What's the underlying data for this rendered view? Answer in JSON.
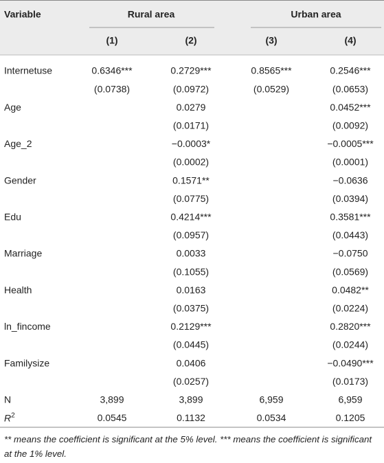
{
  "table": {
    "header": {
      "variable": "Variable",
      "groups": [
        "Rural area",
        "Urban area"
      ],
      "columns": [
        "(1)",
        "(2)",
        "(3)",
        "(4)"
      ]
    },
    "rows": [
      [
        "Internetuse",
        "0.6346***",
        "0.2729***",
        "0.8565***",
        "0.2546***"
      ],
      [
        null,
        "(0.0738)",
        "(0.0972)",
        "(0.0529)",
        "(0.0653)"
      ],
      [
        "Age",
        null,
        "0.0279",
        null,
        "0.0452***"
      ],
      [
        null,
        null,
        "(0.0171)",
        null,
        "(0.0092)"
      ],
      [
        "Age_2",
        null,
        "−0.0003*",
        null,
        "−0.0005***"
      ],
      [
        null,
        null,
        "(0.0002)",
        null,
        "(0.0001)"
      ],
      [
        "Gender",
        null,
        "0.1571**",
        null,
        "−0.0636"
      ],
      [
        null,
        null,
        "(0.0775)",
        null,
        "(0.0394)"
      ],
      [
        "Edu",
        null,
        "0.4214***",
        null,
        "0.3581***"
      ],
      [
        null,
        null,
        "(0.0957)",
        null,
        "(0.0443)"
      ],
      [
        "Marriage",
        null,
        "0.0033",
        null,
        "−0.0750"
      ],
      [
        null,
        null,
        "(0.1055)",
        null,
        "(0.0569)"
      ],
      [
        "Health",
        null,
        "0.0163",
        null,
        "0.0482**"
      ],
      [
        null,
        null,
        "(0.0375)",
        null,
        "(0.0224)"
      ],
      [
        "ln_fincome",
        null,
        "0.2129***",
        null,
        "0.2820***"
      ],
      [
        null,
        null,
        "(0.0445)",
        null,
        "(0.0244)"
      ],
      [
        "Familysize",
        null,
        "0.0406",
        null,
        "−0.0490***"
      ],
      [
        null,
        null,
        "(0.0257)",
        null,
        "(0.0173)"
      ],
      [
        "N",
        "3,899",
        "3,899",
        "6,959",
        "6,959"
      ],
      [
        {
          "label": "R",
          "sup": "2"
        },
        "0.0545",
        "0.1132",
        "0.0534",
        "0.1205"
      ]
    ],
    "footnote": "** means the coefficient is significant at the 5% level. *** means the coefficient is significant at the 1% level."
  }
}
